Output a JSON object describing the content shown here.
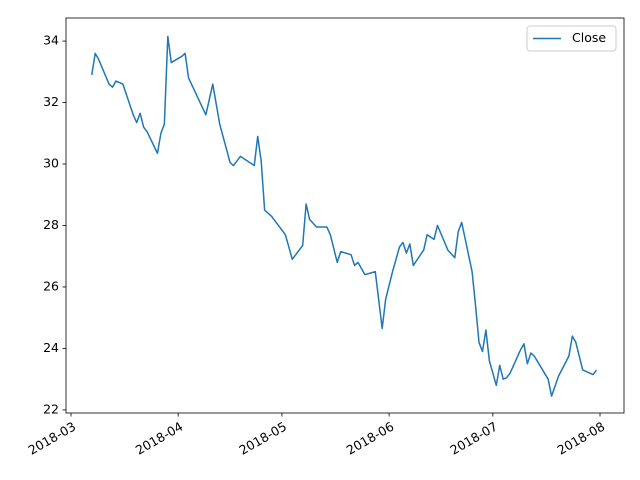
{
  "chart_data": {
    "type": "line",
    "x": [
      17597,
      17598,
      17599,
      17602,
      17603,
      17604,
      17606,
      17609,
      17610,
      17611,
      17612,
      17613,
      17616,
      17617,
      17618,
      17619,
      17620,
      17623,
      17624,
      17625,
      17630,
      17632,
      17634,
      17637,
      17638,
      17640,
      17644,
      17645,
      17646,
      17647,
      17649,
      17653,
      17655,
      17658,
      17659,
      17660,
      17662,
      17665,
      17666,
      17668,
      17669,
      17672,
      17673,
      17674,
      17676,
      17679,
      17681,
      17682,
      17684,
      17686,
      17687,
      17688,
      17689,
      17690,
      17693,
      17694,
      17696,
      17697,
      17700,
      17702,
      17703,
      17704,
      17707,
      17708,
      17709,
      17710,
      17711,
      17712,
      17714,
      17715,
      17716,
      17717,
      17718,
      17721,
      17722,
      17723,
      17724,
      17725,
      17729,
      17730,
      17732,
      17735,
      17736,
      17737,
      17739,
      17742,
      17743
    ],
    "series": [
      {
        "name": "Close",
        "color": "#1f77b4",
        "values": [
          32.9,
          33.6,
          33.4,
          32.6,
          32.5,
          32.7,
          32.6,
          31.6,
          31.35,
          31.65,
          31.2,
          31.05,
          30.35,
          31.0,
          31.3,
          34.15,
          33.3,
          33.5,
          33.6,
          32.8,
          31.6,
          32.6,
          31.3,
          30.05,
          29.95,
          30.25,
          29.95,
          30.9,
          30.1,
          28.5,
          28.3,
          27.7,
          26.9,
          27.35,
          28.7,
          28.2,
          27.95,
          27.95,
          27.7,
          26.8,
          27.15,
          27.05,
          26.7,
          26.8,
          26.4,
          26.5,
          24.65,
          25.6,
          26.5,
          27.3,
          27.45,
          27.1,
          27.4,
          26.7,
          27.2,
          27.7,
          27.55,
          28.0,
          27.2,
          26.95,
          27.8,
          28.1,
          26.5,
          25.4,
          24.2,
          23.9,
          24.6,
          23.6,
          22.8,
          23.45,
          23.0,
          23.05,
          23.2,
          23.95,
          24.15,
          23.5,
          23.85,
          23.75,
          23.0,
          22.45,
          23.1,
          23.75,
          24.4,
          24.2,
          23.3,
          23.15,
          23.3
        ]
      }
    ],
    "xlim": [
      17589.55,
      17750.94
    ],
    "xticks": [
      {
        "value": 17591,
        "label": "2018-03"
      },
      {
        "value": 17622,
        "label": "2018-04"
      },
      {
        "value": 17652,
        "label": "2018-05"
      },
      {
        "value": 17683,
        "label": "2018-06"
      },
      {
        "value": 17713,
        "label": "2018-07"
      },
      {
        "value": 17744,
        "label": "2018-08"
      }
    ],
    "ylim": [
      21.9,
      34.75
    ],
    "yticks": [
      22,
      24,
      26,
      28,
      30,
      32,
      34
    ],
    "legend": "upper right"
  }
}
